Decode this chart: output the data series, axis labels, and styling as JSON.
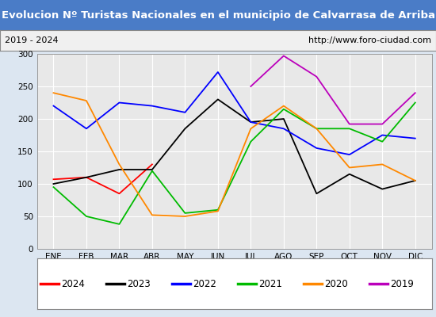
{
  "title": "Evolucion Nº Turistas Nacionales en el municipio de Calvarrasa de Arriba",
  "subtitle_left": "2019 - 2024",
  "subtitle_right": "http://www.foro-ciudad.com",
  "months": [
    "ENE",
    "FEB",
    "MAR",
    "ABR",
    "MAY",
    "JUN",
    "JUL",
    "AGO",
    "SEP",
    "OCT",
    "NOV",
    "DIC"
  ],
  "ylim": [
    0,
    300
  ],
  "yticks": [
    0,
    50,
    100,
    150,
    200,
    250,
    300
  ],
  "series": {
    "2024": {
      "color": "#ff0000",
      "values": [
        107,
        110,
        85,
        130,
        null,
        null,
        null,
        null,
        null,
        null,
        null,
        null
      ]
    },
    "2023": {
      "color": "#000000",
      "values": [
        100,
        110,
        122,
        122,
        185,
        230,
        195,
        200,
        85,
        115,
        92,
        105
      ]
    },
    "2022": {
      "color": "#0000ff",
      "values": [
        220,
        185,
        225,
        220,
        210,
        272,
        195,
        185,
        155,
        145,
        175,
        170
      ]
    },
    "2021": {
      "color": "#00bb00",
      "values": [
        95,
        50,
        38,
        120,
        55,
        60,
        165,
        215,
        185,
        185,
        165,
        225
      ]
    },
    "2020": {
      "color": "#ff8800",
      "values": [
        240,
        228,
        130,
        52,
        50,
        58,
        185,
        220,
        185,
        125,
        130,
        105
      ]
    },
    "2019": {
      "color": "#bb00bb",
      "values": [
        null,
        null,
        null,
        null,
        null,
        null,
        250,
        297,
        265,
        192,
        192,
        240
      ]
    }
  },
  "legend_order": [
    "2024",
    "2023",
    "2022",
    "2021",
    "2020",
    "2019"
  ],
  "title_bg_color": "#4a7cc7",
  "title_font_color": "#ffffff",
  "plot_bg_color": "#e8e8e8",
  "grid_color": "#ffffff",
  "outer_bg_color": "#dce6f1"
}
